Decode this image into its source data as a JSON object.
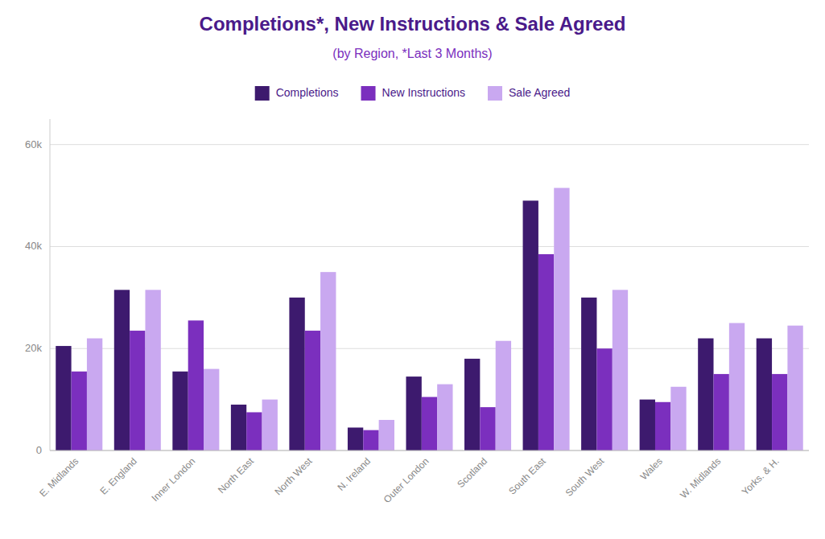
{
  "chart_data": {
    "type": "bar",
    "title": "Completions*, New Instructions & Sale Agreed",
    "subtitle": "(by Region, *Last 3 Months)",
    "categories": [
      "E. Midlands",
      "E. England",
      "Inner London",
      "North East",
      "North West",
      "N. Ireland",
      "Outer London",
      "Scotland",
      "South East",
      "South West",
      "Wales",
      "W. Midlands",
      "Yorks. & H."
    ],
    "series": [
      {
        "name": "Completions",
        "color": "#3d1a6e",
        "values": [
          20500,
          31500,
          15500,
          9000,
          30000,
          4500,
          14500,
          18000,
          49000,
          30000,
          10000,
          22000,
          22000
        ]
      },
      {
        "name": "New Instructions",
        "color": "#7b2fbe",
        "values": [
          15500,
          23500,
          25500,
          7500,
          23500,
          4000,
          10500,
          8500,
          38500,
          20000,
          9500,
          15000,
          15000
        ]
      },
      {
        "name": "Sale Agreed",
        "color": "#c9a8f0",
        "values": [
          22000,
          31500,
          16000,
          10000,
          35000,
          6000,
          13000,
          21500,
          51500,
          31500,
          12500,
          25000,
          24500
        ]
      }
    ],
    "ylim": [
      0,
      65000
    ],
    "yticks": [
      0,
      {
        "value": 20000,
        "label": "20k"
      },
      {
        "value": 40000,
        "label": "40k"
      },
      {
        "value": 60000,
        "label": "60k"
      }
    ],
    "grid": true,
    "legend": "top"
  }
}
